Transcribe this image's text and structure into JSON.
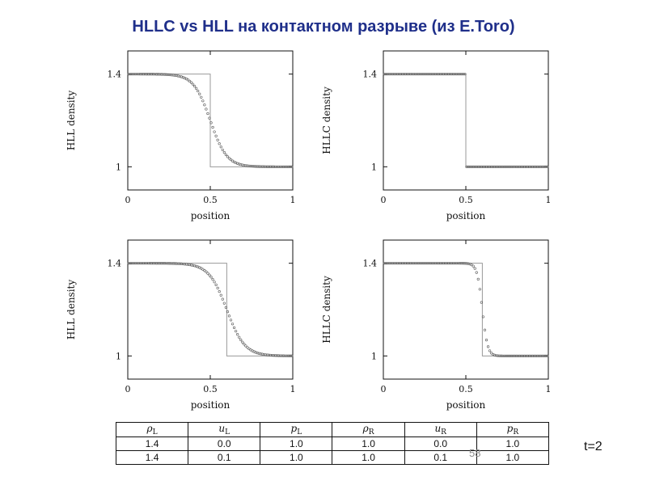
{
  "slide": {
    "title": "HLLC vs HLL на контактном разрыве  (из E.Toro)",
    "page_number": "58",
    "time_label": "t=2"
  },
  "colors": {
    "title": "#1f2f8a",
    "exact": "#9a9a9a",
    "numeric": "#555555",
    "axes": "#111111"
  },
  "chart_data": [
    {
      "type": "scatter",
      "ylabel": "HLL density",
      "xlabel": "position",
      "xlim": [
        0,
        1
      ],
      "ylim": [
        0.9,
        1.5
      ],
      "xticks": [
        "0",
        "0.5",
        "1"
      ],
      "yticks": [
        "1",
        "1.4"
      ],
      "discontinuity": 0.5,
      "rho_left": 1.4,
      "rho_right": 1.0,
      "smear_width": 0.11,
      "series": [
        {
          "kind": "exact"
        },
        {
          "kind": "numerical"
        }
      ]
    },
    {
      "type": "scatter",
      "ylabel": "HLLC density",
      "xlabel": "position",
      "xlim": [
        0,
        1
      ],
      "ylim": [
        0.9,
        1.5
      ],
      "xticks": [
        "0",
        "0.5",
        "1"
      ],
      "yticks": [
        "1",
        "1.4"
      ],
      "discontinuity": 0.5,
      "rho_left": 1.4,
      "rho_right": 1.0,
      "smear_width": 0.0,
      "series": [
        {
          "kind": "exact"
        },
        {
          "kind": "numerical"
        }
      ]
    },
    {
      "type": "scatter",
      "ylabel": "HLL density",
      "xlabel": "position",
      "xlim": [
        0,
        1
      ],
      "ylim": [
        0.9,
        1.5
      ],
      "xticks": [
        "0",
        "0.5",
        "1"
      ],
      "yticks": [
        "1",
        "1.4"
      ],
      "discontinuity": 0.6,
      "rho_left": 1.4,
      "rho_right": 1.0,
      "smear_width": 0.12,
      "series": [
        {
          "kind": "exact"
        },
        {
          "kind": "numerical"
        }
      ]
    },
    {
      "type": "scatter",
      "ylabel": "HLLC density",
      "xlabel": "position",
      "xlim": [
        0,
        1
      ],
      "ylim": [
        0.9,
        1.5
      ],
      "xticks": [
        "0",
        "0.5",
        "1"
      ],
      "yticks": [
        "1",
        "1.4"
      ],
      "discontinuity": 0.6,
      "rho_left": 1.4,
      "rho_right": 1.0,
      "smear_width": 0.035,
      "series": [
        {
          "kind": "exact"
        },
        {
          "kind": "numerical"
        }
      ]
    }
  ],
  "table": {
    "headers": [
      {
        "sym": "ρ",
        "sub": "L"
      },
      {
        "sym": "u",
        "sub": "L"
      },
      {
        "sym": "p",
        "sub": "L"
      },
      {
        "sym": "ρ",
        "sub": "R"
      },
      {
        "sym": "u",
        "sub": "R"
      },
      {
        "sym": "p",
        "sub": "R"
      }
    ],
    "rows": [
      [
        "1.4",
        "0.0",
        "1.0",
        "1.0",
        "0.0",
        "1.0"
      ],
      [
        "1.4",
        "0.1",
        "1.0",
        "1.0",
        "0.1",
        "1.0"
      ]
    ]
  }
}
